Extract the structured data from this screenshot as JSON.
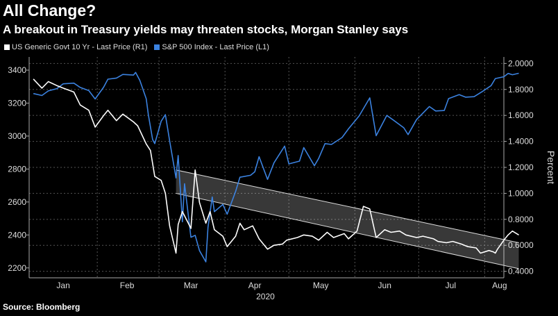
{
  "header": {
    "title": "All Change?",
    "subtitle": "A breakout in Treasury yields may threaten stocks, Morgan Stanley says"
  },
  "legend": {
    "items": [
      {
        "label": "US Generic Govt 10 Yr - Last Price (R1)",
        "color": "#ffffff"
      },
      {
        "label": "S&P 500 Index - Last Price (L1)",
        "color": "#3b82e0"
      }
    ]
  },
  "footer": {
    "source": "Source: Bloomberg"
  },
  "chart_data": {
    "type": "line",
    "x_tick_labels": [
      "Jan",
      "Feb",
      "Mar",
      "Apr",
      "May",
      "Jun",
      "Jul",
      "Aug"
    ],
    "x_year_label": "2020",
    "y_left": {
      "ticks": [
        2200,
        2400,
        2600,
        2800,
        3000,
        3200,
        3400
      ],
      "range": [
        2140,
        3480
      ]
    },
    "y_right": {
      "label": "Percent",
      "ticks": [
        "0.4000",
        "0.6000",
        "0.8000",
        "1.0000",
        "1.2000",
        "1.4000",
        "1.6000",
        "1.8000",
        "2.0000"
      ],
      "range": [
        0.35,
        2.05
      ]
    },
    "x_range": [
      "2019-12-31",
      "2020-08-10"
    ],
    "series": [
      {
        "name": "US Generic Govt 10 Yr - Last Price (R1)",
        "axis": "right",
        "color": "#ffffff",
        "points": [
          [
            "2020-01-02",
            1.88
          ],
          [
            "2020-01-06",
            1.81
          ],
          [
            "2020-01-09",
            1.86
          ],
          [
            "2020-01-13",
            1.83
          ],
          [
            "2020-01-16",
            1.81
          ],
          [
            "2020-01-21",
            1.78
          ],
          [
            "2020-01-24",
            1.68
          ],
          [
            "2020-01-28",
            1.64
          ],
          [
            "2020-01-31",
            1.51
          ],
          [
            "2020-02-04",
            1.6
          ],
          [
            "2020-02-06",
            1.64
          ],
          [
            "2020-02-10",
            1.56
          ],
          [
            "2020-02-13",
            1.61
          ],
          [
            "2020-02-18",
            1.55
          ],
          [
            "2020-02-20",
            1.52
          ],
          [
            "2020-02-24",
            1.38
          ],
          [
            "2020-02-26",
            1.33
          ],
          [
            "2020-02-28",
            1.13
          ],
          [
            "2020-03-02",
            1.1
          ],
          [
            "2020-03-04",
            1.0
          ],
          [
            "2020-03-06",
            0.75
          ],
          [
            "2020-03-09",
            0.54
          ],
          [
            "2020-03-10",
            0.76
          ],
          [
            "2020-03-12",
            0.86
          ],
          [
            "2020-03-16",
            0.73
          ],
          [
            "2020-03-18",
            1.18
          ],
          [
            "2020-03-20",
            0.93
          ],
          [
            "2020-03-23",
            0.77
          ],
          [
            "2020-03-25",
            0.86
          ],
          [
            "2020-03-27",
            0.72
          ],
          [
            "2020-03-31",
            0.67
          ],
          [
            "2020-04-02",
            0.59
          ],
          [
            "2020-04-06",
            0.67
          ],
          [
            "2020-04-08",
            0.77
          ],
          [
            "2020-04-10",
            0.72
          ],
          [
            "2020-04-14",
            0.75
          ],
          [
            "2020-04-17",
            0.65
          ],
          [
            "2020-04-21",
            0.57
          ],
          [
            "2020-04-24",
            0.6
          ],
          [
            "2020-04-28",
            0.61
          ],
          [
            "2020-04-30",
            0.64
          ],
          [
            "2020-05-05",
            0.66
          ],
          [
            "2020-05-08",
            0.68
          ],
          [
            "2020-05-12",
            0.67
          ],
          [
            "2020-05-15",
            0.64
          ],
          [
            "2020-05-19",
            0.7
          ],
          [
            "2020-05-22",
            0.66
          ],
          [
            "2020-05-27",
            0.69
          ],
          [
            "2020-05-29",
            0.65
          ],
          [
            "2020-06-02",
            0.71
          ],
          [
            "2020-06-05",
            0.9
          ],
          [
            "2020-06-08",
            0.88
          ],
          [
            "2020-06-11",
            0.66
          ],
          [
            "2020-06-15",
            0.72
          ],
          [
            "2020-06-18",
            0.7
          ],
          [
            "2020-06-22",
            0.71
          ],
          [
            "2020-06-25",
            0.68
          ],
          [
            "2020-06-30",
            0.66
          ],
          [
            "2020-07-03",
            0.67
          ],
          [
            "2020-07-08",
            0.65
          ],
          [
            "2020-07-10",
            0.63
          ],
          [
            "2020-07-14",
            0.62
          ],
          [
            "2020-07-17",
            0.63
          ],
          [
            "2020-07-21",
            0.61
          ],
          [
            "2020-07-24",
            0.59
          ],
          [
            "2020-07-28",
            0.58
          ],
          [
            "2020-07-30",
            0.54
          ],
          [
            "2020-08-03",
            0.56
          ],
          [
            "2020-08-05",
            0.55
          ],
          [
            "2020-08-06",
            0.54
          ],
          [
            "2020-08-07",
            0.57
          ],
          [
            "2020-08-10",
            0.64
          ],
          [
            "2020-08-12",
            0.68
          ],
          [
            "2020-08-14",
            0.71
          ],
          [
            "2020-08-17",
            0.68
          ]
        ]
      },
      {
        "name": "S&P 500 Index - Last Price (L1)",
        "axis": "left",
        "color": "#3b82e0",
        "points": [
          [
            "2020-01-02",
            3258
          ],
          [
            "2020-01-06",
            3246
          ],
          [
            "2020-01-09",
            3274
          ],
          [
            "2020-01-13",
            3288
          ],
          [
            "2020-01-16",
            3317
          ],
          [
            "2020-01-21",
            3321
          ],
          [
            "2020-01-24",
            3295
          ],
          [
            "2020-01-28",
            3276
          ],
          [
            "2020-01-31",
            3225
          ],
          [
            "2020-02-04",
            3297
          ],
          [
            "2020-02-06",
            3345
          ],
          [
            "2020-02-10",
            3352
          ],
          [
            "2020-02-13",
            3374
          ],
          [
            "2020-02-18",
            3370
          ],
          [
            "2020-02-19",
            3386
          ],
          [
            "2020-02-21",
            3338
          ],
          [
            "2020-02-24",
            3226
          ],
          [
            "2020-02-25",
            3128
          ],
          [
            "2020-02-27",
            2979
          ],
          [
            "2020-02-28",
            2954
          ],
          [
            "2020-03-02",
            3090
          ],
          [
            "2020-03-04",
            3130
          ],
          [
            "2020-03-06",
            2972
          ],
          [
            "2020-03-09",
            2746
          ],
          [
            "2020-03-10",
            2882
          ],
          [
            "2020-03-12",
            2480
          ],
          [
            "2020-03-13",
            2711
          ],
          [
            "2020-03-16",
            2386
          ],
          [
            "2020-03-18",
            2398
          ],
          [
            "2020-03-20",
            2305
          ],
          [
            "2020-03-23",
            2237
          ],
          [
            "2020-03-24",
            2447
          ],
          [
            "2020-03-26",
            2630
          ],
          [
            "2020-03-27",
            2541
          ],
          [
            "2020-03-31",
            2585
          ],
          [
            "2020-04-02",
            2526
          ],
          [
            "2020-04-06",
            2664
          ],
          [
            "2020-04-08",
            2750
          ],
          [
            "2020-04-13",
            2762
          ],
          [
            "2020-04-15",
            2783
          ],
          [
            "2020-04-17",
            2875
          ],
          [
            "2020-04-21",
            2737
          ],
          [
            "2020-04-24",
            2837
          ],
          [
            "2020-04-29",
            2939
          ],
          [
            "2020-05-01",
            2831
          ],
          [
            "2020-05-06",
            2848
          ],
          [
            "2020-05-08",
            2930
          ],
          [
            "2020-05-13",
            2820
          ],
          [
            "2020-05-15",
            2864
          ],
          [
            "2020-05-18",
            2954
          ],
          [
            "2020-05-21",
            2949
          ],
          [
            "2020-05-26",
            2991
          ],
          [
            "2020-05-29",
            3044
          ],
          [
            "2020-06-03",
            3122
          ],
          [
            "2020-06-08",
            3232
          ],
          [
            "2020-06-11",
            3002
          ],
          [
            "2020-06-16",
            3125
          ],
          [
            "2020-06-19",
            3098
          ],
          [
            "2020-06-24",
            3050
          ],
          [
            "2020-06-26",
            3009
          ],
          [
            "2020-06-30",
            3100
          ],
          [
            "2020-07-06",
            3179
          ],
          [
            "2020-07-09",
            3152
          ],
          [
            "2020-07-13",
            3155
          ],
          [
            "2020-07-15",
            3227
          ],
          [
            "2020-07-20",
            3251
          ],
          [
            "2020-07-23",
            3236
          ],
          [
            "2020-07-27",
            3239
          ],
          [
            "2020-07-31",
            3271
          ],
          [
            "2020-08-04",
            3306
          ],
          [
            "2020-08-06",
            3349
          ],
          [
            "2020-08-10",
            3360
          ],
          [
            "2020-08-12",
            3380
          ],
          [
            "2020-08-14",
            3372
          ],
          [
            "2020-08-17",
            3381
          ]
        ]
      }
    ],
    "channel": {
      "axis": "right",
      "upper": [
        [
          "2020-03-09",
          1.18
        ],
        [
          "2020-08-17",
          0.62
        ]
      ],
      "lower": [
        [
          "2020-03-09",
          1.0
        ],
        [
          "2020-08-17",
          0.42
        ]
      ]
    },
    "grid": true
  }
}
